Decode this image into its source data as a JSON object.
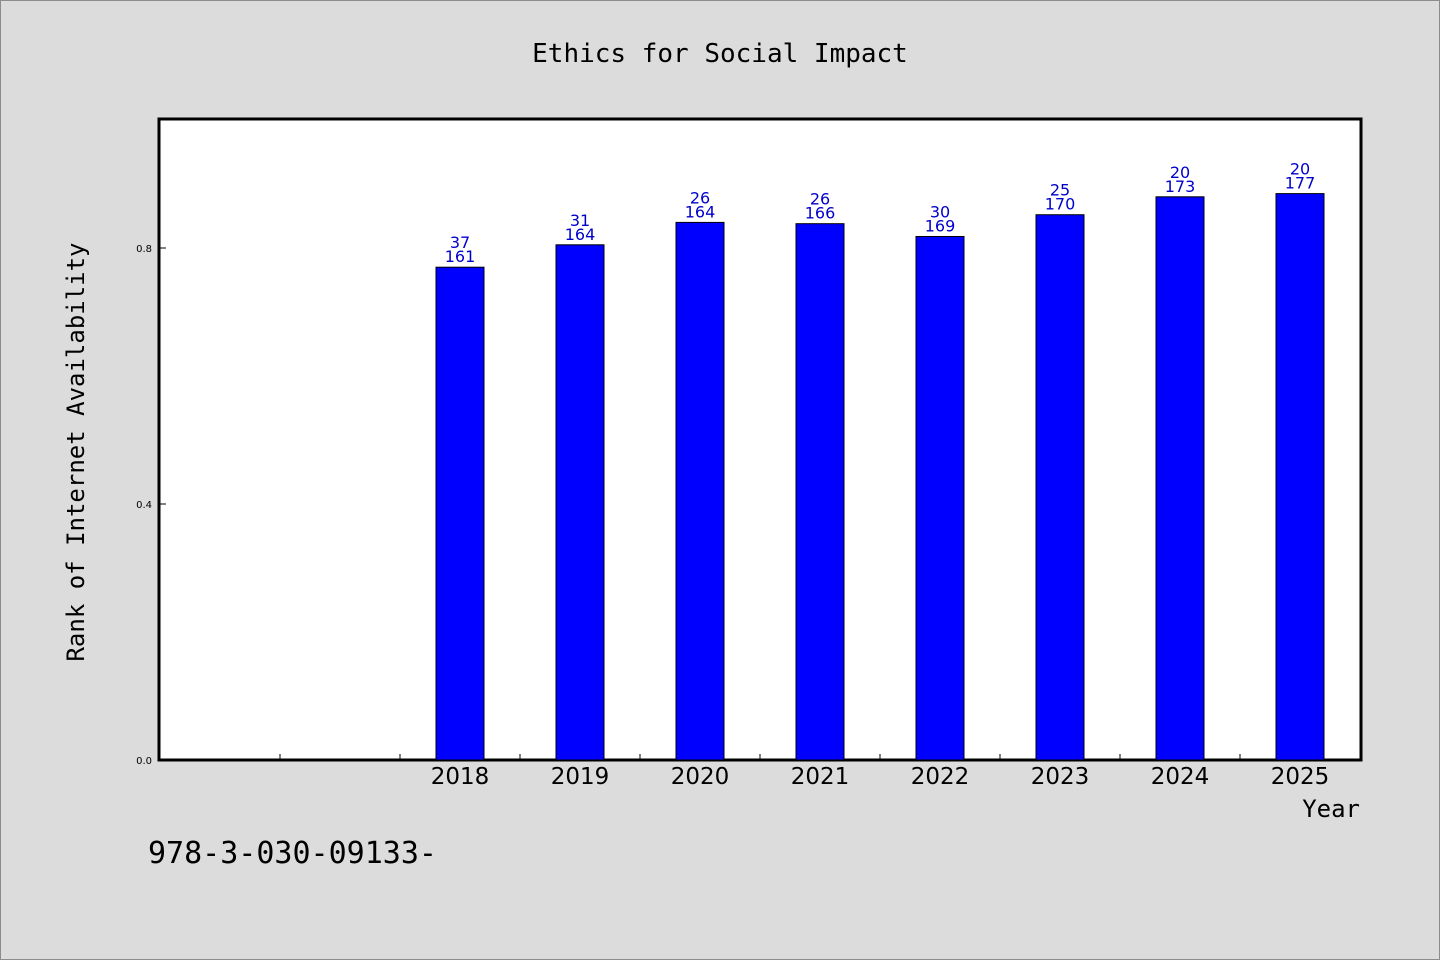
{
  "chart_data": {
    "type": "bar",
    "title": "Ethics for Social Impact",
    "xlabel": "Year",
    "ylabel": "Rank of Internet Availability",
    "ylim": [
      0,
      1.0
    ],
    "yticks": [
      "0.0",
      "0.4",
      "0.8"
    ],
    "slots": 10,
    "categories": [
      "2018",
      "2019",
      "2020",
      "2021",
      "2022",
      "2023",
      "2024",
      "2025"
    ],
    "values": [
      0.77,
      0.805,
      0.84,
      0.838,
      0.818,
      0.852,
      0.88,
      0.885
    ],
    "labels_top": [
      "37",
      "31",
      "26",
      "26",
      "30",
      "25",
      "20",
      "20"
    ],
    "labels_bottom": [
      "161",
      "164",
      "164",
      "166",
      "169",
      "170",
      "173",
      "177"
    ],
    "bar_color": "#0000ff",
    "label_color": "#0000cc",
    "grid": false
  },
  "footer": {
    "text": "978-3-030-09133-"
  }
}
